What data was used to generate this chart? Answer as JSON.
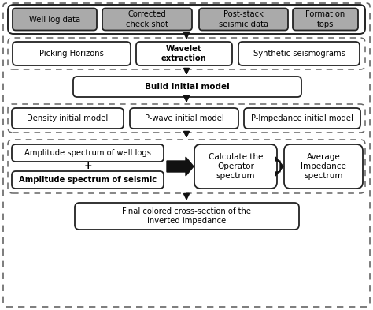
{
  "bg_color": "#ffffff",
  "gray_fill": "#aaaaaa",
  "white_fill": "#ffffff",
  "ec": "#222222",
  "dash_color": "#666666",
  "arrow_color": "#111111",
  "font_size": 7.2,
  "row1_boxes": [
    {
      "text": "Well log data"
    },
    {
      "text": "Corrected\ncheck shot"
    },
    {
      "text": "Post-stack\nseismic data"
    },
    {
      "text": "Formation\ntops"
    }
  ],
  "row2_boxes": [
    {
      "text": "Picking Horizons",
      "bold": false
    },
    {
      "text": "Wavelet\nextraction",
      "bold": true
    },
    {
      "text": "Synthetic seismograms",
      "bold": false
    }
  ],
  "row3_text": "Build initial model",
  "row4_boxes": [
    {
      "text": "Density initial model"
    },
    {
      "text": "P-wave initial model"
    },
    {
      "text": "P-Impedance initial model"
    }
  ],
  "row5_left_top": "Amplitude spectrum of well logs",
  "row5_left_bot": "Amplitude spectrum of seismic",
  "row5_mid": "Calculate the\nOperator\nspectrum",
  "row5_right": "Average\nImpedance\nspectrum",
  "row6_text": "Final colored cross-section of the\ninverted impedance"
}
